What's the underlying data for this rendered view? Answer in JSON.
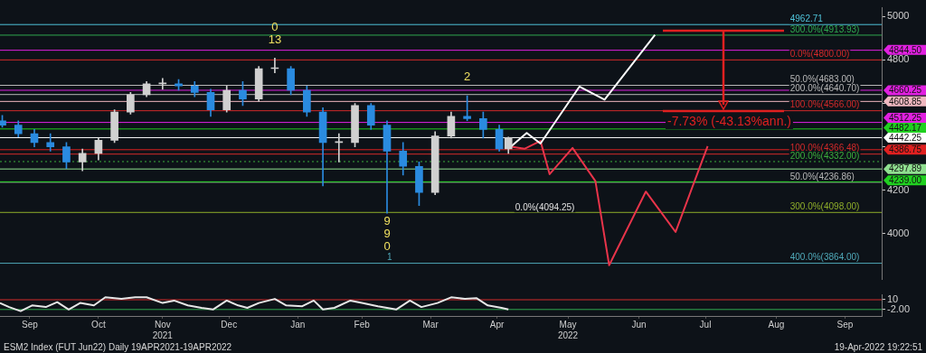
{
  "chart_data": [
    {
      "type": "candlestick",
      "tick_labels": "y",
      "x": [
        "2021-09-10",
        "2021-09-17",
        "2021-09-24",
        "2021-10-01",
        "2021-10-08",
        "2021-10-15",
        "2021-10-22",
        "2021-10-29",
        "2021-11-05",
        "2021-11-12",
        "2021-11-19",
        "2021-11-26",
        "2021-12-03",
        "2021-12-10",
        "2021-12-17",
        "2021-12-24",
        "2021-12-31",
        "2022-01-07",
        "2022-01-14",
        "2022-01-21",
        "2022-01-28",
        "2022-02-04",
        "2022-02-11",
        "2022-02-18",
        "2022-02-25",
        "2022-03-04",
        "2022-03-11",
        "2022-03-18",
        "2022-03-25",
        "2022-04-01",
        "2022-04-08",
        "2022-04-15",
        "2022-04-19"
      ],
      "ohlc": [
        [
          4520,
          4545,
          4490,
          4500
        ],
        [
          4500,
          4520,
          4445,
          4460
        ],
        [
          4460,
          4480,
          4400,
          4420
        ],
        [
          4420,
          4460,
          4380,
          4400
        ],
        [
          4400,
          4420,
          4300,
          4330
        ],
        [
          4330,
          4390,
          4290,
          4370
        ],
        [
          4370,
          4440,
          4340,
          4430
        ],
        [
          4430,
          4570,
          4420,
          4560
        ],
        [
          4560,
          4650,
          4550,
          4640
        ],
        [
          4640,
          4700,
          4630,
          4690
        ],
        [
          4690,
          4715,
          4665,
          4690
        ],
        [
          4690,
          4710,
          4660,
          4680
        ],
        [
          4680,
          4700,
          4630,
          4650
        ],
        [
          4650,
          4665,
          4540,
          4570
        ],
        [
          4570,
          4680,
          4560,
          4660
        ],
        [
          4660,
          4700,
          4590,
          4620
        ],
        [
          4620,
          4770,
          4610,
          4760
        ],
        [
          4760,
          4808,
          4740,
          4760
        ],
        [
          4760,
          4770,
          4640,
          4660
        ],
        [
          4660,
          4680,
          4540,
          4560
        ],
        [
          4560,
          4580,
          4220,
          4420
        ],
        [
          4420,
          4460,
          4330,
          4420
        ],
        [
          4420,
          4600,
          4400,
          4590
        ],
        [
          4590,
          4600,
          4480,
          4500
        ],
        [
          4500,
          4520,
          4094.25,
          4380
        ],
        [
          4380,
          4420,
          4270,
          4310
        ],
        [
          4310,
          4330,
          4130,
          4190
        ],
        [
          4190,
          4470,
          4180,
          4450
        ],
        [
          4450,
          4560,
          4440,
          4540
        ],
        [
          4540,
          4635,
          4520,
          4530
        ],
        [
          4530,
          4560,
          4440,
          4480
        ],
        [
          4480,
          4500,
          4380,
          4390
        ],
        [
          4390,
          4445,
          4370,
          4442.25
        ]
      ],
      "colors": [
        "#2a8be0",
        "#2a8be0",
        "#2a8be0",
        "#2a8be0",
        "#2a8be0",
        "#d0d0d0",
        "#d0d0d0",
        "#d0d0d0",
        "#d0d0d0",
        "#d0d0d0",
        "#d0d0d0",
        "#2a8be0",
        "#2a8be0",
        "#2a8be0",
        "#d0d0d0",
        "#2a8be0",
        "#d0d0d0",
        "#d0d0d0",
        "#2a8be0",
        "#2a8be0",
        "#2a8be0",
        "#d0d0d0",
        "#d0d0d0",
        "#2a8be0",
        "#2a8be0",
        "#2a8be0",
        "#2a8be0",
        "#d0d0d0",
        "#d0d0d0",
        "#2a8be0",
        "#2a8be0",
        "#2a8be0",
        "#d0d0d0"
      ],
      "series": [
        {
          "type": "line",
          "color": "#ffffff",
          "x": [
            "2022-04-19",
            "2022-04-27",
            "2022-05-03",
            "2022-05-20",
            "2022-05-31",
            "2022-06-22"
          ],
          "values": [
            4391,
            4464,
            4415,
            4677,
            4617,
            4915
          ]
        },
        {
          "type": "line",
          "color": "#e8344a",
          "x": [
            "2022-04-19",
            "2022-04-26",
            "2022-05-03",
            "2022-05-07",
            "2022-05-17",
            "2022-05-27",
            "2022-06-02",
            "2022-06-18",
            "2022-07-01",
            "2022-07-15"
          ],
          "values": [
            4403,
            4391,
            4427,
            4274,
            4395,
            4242,
            3855,
            4194,
            4008,
            4403
          ]
        }
      ],
      "xlim": [
        "2021-09-09",
        "2022-09-29"
      ],
      "ylim": [
        3790,
        5040
      ],
      "yticks": [
        4000,
        4200,
        {
          "value": 4400,
          "label": null
        },
        {
          "value": 4600,
          "label": null
        },
        4800,
        5000
      ],
      "ref_lines": [
        {
          "axis": "y",
          "value": 4962.71,
          "color": "#4fc3d9"
        },
        {
          "axis": "y",
          "value": 4913.93,
          "color": "#2fa84f"
        },
        {
          "axis": "y",
          "value": 4800,
          "color": "#d42a2a"
        },
        {
          "axis": "y",
          "value": 4683,
          "color": "#b8b8b8"
        },
        {
          "axis": "y",
          "value": 4640.7,
          "color": "#b8b8b8"
        },
        {
          "axis": "y",
          "value": 4566,
          "color": "#d42a2a"
        },
        {
          "axis": "y",
          "value": 4366.48,
          "color": "#d42a2a"
        },
        {
          "axis": "y",
          "value": 4332,
          "color": "#3cae3c",
          "line_style": "dotted"
        },
        {
          "axis": "y",
          "value": 4236.86,
          "color": "#b8b8b8"
        },
        {
          "axis": "y",
          "value": 4098,
          "color": "#8fae2a"
        },
        {
          "axis": "y",
          "value": 3864,
          "color": "#4fa8b8"
        },
        {
          "axis": "y",
          "value": 4844.5,
          "label": "4844.50",
          "color": "#e020e0"
        },
        {
          "axis": "y",
          "value": 4660.25,
          "label": "4660.25",
          "color": "#e020e0"
        },
        {
          "axis": "y",
          "value": 4608.85,
          "label": "4608.85",
          "color": "#f0b8c0"
        },
        {
          "axis": "y",
          "value": 4512.25,
          "label": "4512.25",
          "color": "#e020e0"
        },
        {
          "axis": "y",
          "value": 4482.17,
          "label": "4482.17",
          "color": "#20d020"
        },
        {
          "axis": "y",
          "value": 4442.25,
          "label": "4442.25",
          "color": "#ffffff"
        },
        {
          "axis": "y",
          "value": 4386.75,
          "label": "4386.75",
          "color": "#e02020"
        },
        {
          "axis": "y",
          "value": 4297.89,
          "label": "4297.89",
          "color": "#90e090"
        },
        {
          "axis": "y",
          "value": 4239,
          "label": "4239.00",
          "color": "#20d020"
        }
      ],
      "annotations": [
        {
          "text": "4962.71",
          "x": "2022-08-20",
          "y": 4962.71
        },
        {
          "text": "300.0%(4913.93)",
          "x": "2022-08-20",
          "y": 4913.93
        },
        {
          "text": "0.0%(4800.00)",
          "x": "2022-08-20",
          "y": 4800
        },
        {
          "text": "50.0%(4683.00)",
          "x": "2022-08-20",
          "y": 4683
        },
        {
          "text": "200.0%(4640.70)",
          "x": "2022-08-20",
          "y": 4640.7
        },
        {
          "text": "100.0%(4566.00)",
          "x": "2022-08-20",
          "y": 4566
        },
        {
          "text": "100.0%(4366.48)",
          "x": "2022-08-20",
          "y": 4366.48
        },
        {
          "text": "200.0%(4332.00)",
          "x": "2022-08-20",
          "y": 4332
        },
        {
          "text": "50.0%(4236.86)",
          "x": "2022-08-20",
          "y": 4236.86
        },
        {
          "text": "300.0%(4098.00)",
          "x": "2022-08-20",
          "y": 4098
        },
        {
          "text": "0.0%(4094.25)",
          "x": "2022-04-22",
          "y": 4094.25
        },
        {
          "text": "400.0%(3864.00)",
          "x": "2022-08-20",
          "y": 3864
        },
        {
          "text": "13",
          "x": "2022-01-07",
          "y": 4808
        },
        {
          "text": "0",
          "x": "2022-01-07",
          "y": 4808
        },
        {
          "text": "2",
          "x": "2022-04-01",
          "y": 4635
        },
        {
          "text": "9",
          "x": "2022-02-25",
          "y": 4094.25
        },
        {
          "text": "9",
          "x": "2022-02-25",
          "y": 4094.25
        },
        {
          "text": "0",
          "x": "2022-02-25",
          "y": 4094.25
        },
        {
          "text": "1",
          "x": "2022-02-25",
          "y": 3864
        },
        "-7.73% (-43.13%ann.)"
      ]
    },
    {
      "type": "line",
      "color": "#e6e6e6",
      "x": [
        "2021-09-09",
        "2021-09-13",
        "2021-09-18",
        "2021-09-23",
        "2021-09-29",
        "2021-10-04",
        "2021-10-09",
        "2021-10-14",
        "2021-10-20",
        "2021-10-25",
        "2021-11-01",
        "2021-11-07",
        "2021-11-12",
        "2021-11-19",
        "2021-11-24",
        "2021-11-30",
        "2021-12-06",
        "2021-12-11",
        "2021-12-17",
        "2021-12-22",
        "2021-12-26",
        "2021-12-31",
        "2022-01-07",
        "2022-01-12",
        "2022-01-19",
        "2022-01-24",
        "2022-01-28",
        "2022-02-02",
        "2022-02-09",
        "2022-02-14",
        "2022-02-21",
        "2022-03-01",
        "2022-03-07",
        "2022-03-12",
        "2022-03-19",
        "2022-03-25",
        "2022-03-31",
        "2022-04-05",
        "2022-04-10",
        "2022-04-16",
        "2022-04-19"
      ],
      "values": [
        6,
        1,
        -4,
        3,
        1,
        7,
        -2,
        6,
        3,
        13,
        11,
        13,
        13,
        6,
        9,
        3,
        0,
        -2,
        9,
        3,
        0,
        6,
        11,
        3,
        2,
        9,
        -2,
        0,
        9,
        6,
        2,
        -2,
        9,
        1,
        6,
        13,
        11,
        12,
        3,
        0,
        -2
      ],
      "xlim": [
        "2021-09-09",
        "2022-09-29"
      ],
      "xticks": [
        {
          "value": "2021-09-22",
          "label": "Sep"
        },
        {
          "value": "2021-10-22",
          "label": "Oct"
        },
        {
          "value": "2021-11-19",
          "label": "Nov\n2021"
        },
        {
          "value": "2021-12-18",
          "label": "Dec"
        },
        {
          "value": "2022-01-17",
          "label": "Jan"
        },
        {
          "value": "2022-02-14",
          "label": "Feb"
        },
        {
          "value": "2022-03-16",
          "label": "Mar"
        },
        {
          "value": "2022-04-14",
          "label": "Apr"
        },
        {
          "value": "2022-05-15",
          "label": "May\n2022"
        },
        {
          "value": "2022-06-15",
          "label": "Jun"
        },
        {
          "value": "2022-07-14",
          "label": "Jul"
        },
        {
          "value": "2022-08-14",
          "label": "Aug"
        },
        {
          "value": "2022-09-13",
          "label": "Sep"
        }
      ],
      "ylim": [
        -10,
        16
      ],
      "yticks": [
        {
          "value": -2,
          "label": "-2.00"
        },
        10
      ],
      "ref_lines": [
        {
          "axis": "y",
          "value": 10,
          "color": "#d42a2a"
        },
        {
          "axis": "y",
          "value": -2,
          "color": "#2fa84f"
        }
      ],
      "annotations": [
        "ESM2 Index (FUT Jun22) Daily 19APR2021-19APR2022",
        "19-Apr-2022 19:22:51"
      ]
    }
  ]
}
